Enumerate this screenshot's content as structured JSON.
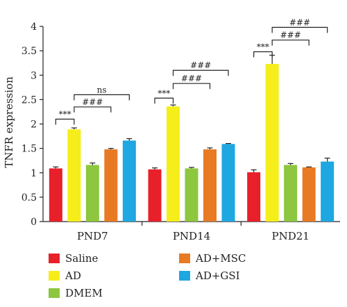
{
  "chart_data": {
    "type": "bar",
    "ylabel": "TNFR expression",
    "xlabel": "",
    "ylim": [
      0,
      4
    ],
    "yticks": [
      "0",
      "0.5",
      "1",
      "1.5",
      "2",
      "2.5",
      "3",
      "3.5",
      "4"
    ],
    "grid": false,
    "legend_position": "bottom",
    "categories": [
      "PND7",
      "PND14",
      "PND21"
    ],
    "series": [
      {
        "name": "Saline",
        "color": "#e8202a",
        "values": [
          1.09,
          1.07,
          1.01
        ],
        "errors": [
          0.03,
          0.03,
          0.05
        ]
      },
      {
        "name": "AD",
        "color": "#f5ee1a",
        "values": [
          1.89,
          2.36,
          3.23
        ],
        "errors": [
          0.03,
          0.03,
          0.18
        ]
      },
      {
        "name": "DMEM",
        "color": "#8dc63f",
        "values": [
          1.16,
          1.09,
          1.16
        ],
        "errors": [
          0.04,
          0.02,
          0.03
        ]
      },
      {
        "name": "AD+MSC",
        "color": "#e87a24",
        "values": [
          1.48,
          1.48,
          1.11
        ],
        "errors": [
          0.02,
          0.03,
          0.01
        ]
      },
      {
        "name": "AD+GSI",
        "color": "#1ea7e1",
        "values": [
          1.66,
          1.59,
          1.23
        ],
        "errors": [
          0.04,
          0.01,
          0.07
        ]
      }
    ],
    "significance": [
      {
        "group": 0,
        "from": 0,
        "to": 1,
        "y": 2.1,
        "label": "***"
      },
      {
        "group": 0,
        "from": 1,
        "to": 3,
        "y": 2.35,
        "label": "###"
      },
      {
        "group": 0,
        "from": 1,
        "to": 4,
        "y": 2.6,
        "label": "ns"
      },
      {
        "group": 1,
        "from": 0,
        "to": 1,
        "y": 2.53,
        "label": "***"
      },
      {
        "group": 1,
        "from": 1,
        "to": 3,
        "y": 2.83,
        "label": "###"
      },
      {
        "group": 1,
        "from": 1,
        "to": 4,
        "y": 3.1,
        "label": "###"
      },
      {
        "group": 2,
        "from": 0,
        "to": 1,
        "y": 3.48,
        "label": "***"
      },
      {
        "group": 2,
        "from": 1,
        "to": 3,
        "y": 3.72,
        "label": "###"
      },
      {
        "group": 2,
        "from": 1,
        "to": 4,
        "y": 3.98,
        "label": "###"
      }
    ]
  }
}
